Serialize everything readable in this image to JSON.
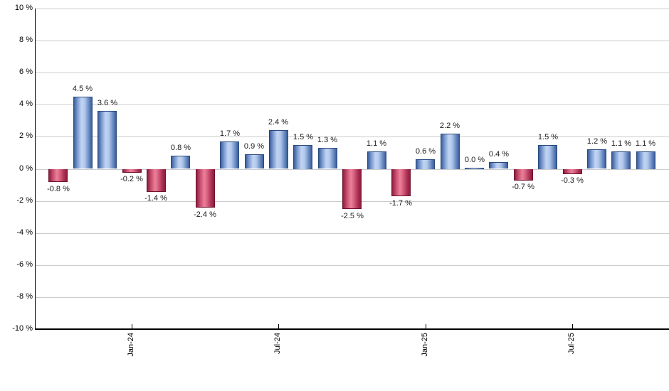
{
  "chart_data": {
    "type": "bar",
    "title": "",
    "xlabel": "",
    "ylabel": "",
    "ylim": [
      -10,
      10
    ],
    "y_tick_step": 2,
    "grid": true,
    "legend": null,
    "y_tick_labels": [
      "10 %",
      "8 %",
      "6 %",
      "4 %",
      "2 %",
      "0 %",
      "-2 %",
      "-4 %",
      "-6 %",
      "-8 %",
      "-10 %"
    ],
    "values": [
      -0.8,
      4.5,
      3.6,
      -0.2,
      -1.4,
      0.8,
      -2.4,
      1.7,
      0.9,
      2.4,
      1.5,
      1.3,
      -2.5,
      1.1,
      -1.7,
      0.6,
      2.2,
      0.0,
      0.4,
      -0.7,
      1.5,
      -0.3,
      1.2,
      1.1,
      1.1
    ],
    "bar_labels": [
      "-0.8 %",
      "4.5 %",
      "3.6 %",
      "-0.2 %",
      "-1.4 %",
      "0.8 %",
      "-2.4 %",
      "1.7 %",
      "0.9 %",
      "2.4 %",
      "1.5 %",
      "1.3 %",
      "-2.5 %",
      "1.1 %",
      "-1.7 %",
      "0.6 %",
      "2.2 %",
      "0.0 %",
      "0.4 %",
      "-0.7 %",
      "1.5 %",
      "-0.3 %",
      "1.2 %",
      "1.1 %",
      "1.1 %"
    ],
    "x_ticks": [
      {
        "index": 3,
        "label": "Jan-24"
      },
      {
        "index": 9,
        "label": "Jul-24"
      },
      {
        "index": 15,
        "label": "Jan-25"
      },
      {
        "index": 21,
        "label": "Jul-25"
      }
    ],
    "colors": {
      "positive_dark": "#3a5e9a",
      "positive_light": "#c2d4f3",
      "negative_dark": "#8e1c3e",
      "negative_light": "#ec809a",
      "gridline": "#cccccc",
      "axis": "#000000",
      "label_text": "#1a1a1a"
    }
  }
}
